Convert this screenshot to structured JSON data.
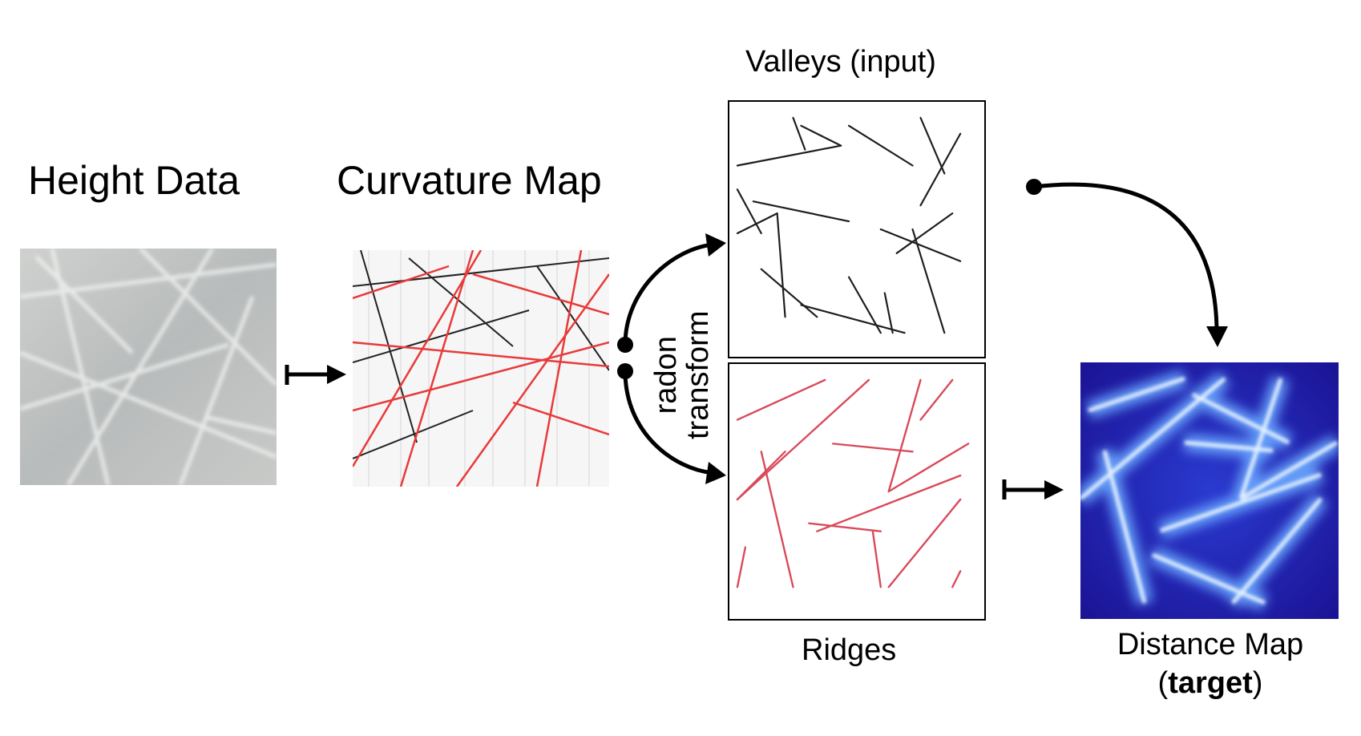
{
  "labels": {
    "height_data": "Height Data",
    "curvature_map": "Curvature Map",
    "valleys": "Valleys (input)",
    "ridges": "Ridges",
    "distance_map_line1": "Distance Map",
    "distance_map_open": "(",
    "distance_map_bold": "target",
    "distance_map_close": ")",
    "radon_line1": "radon",
    "radon_line2": "transform"
  },
  "colors": {
    "height_bg": "#c9cbca",
    "curvature_red": "#e83a3a",
    "ridges_red": "#d94a5a",
    "valley_stroke": "#222222",
    "distance_dark": "#1a1aa8",
    "distance_light": "#cfe6ff"
  },
  "icons": [
    "maps-to-arrow-icon",
    "curved-arrow-icon"
  ]
}
